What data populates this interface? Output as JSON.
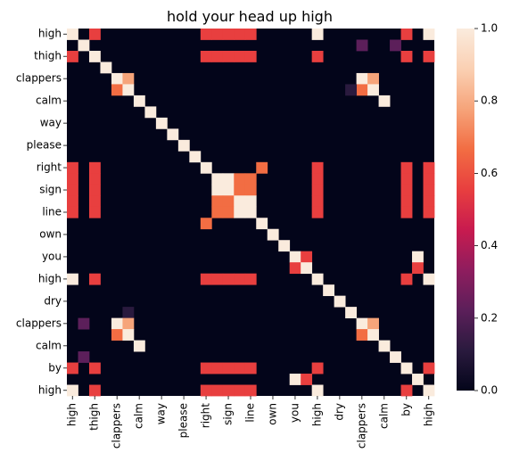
{
  "chart_data": {
    "type": "heatmap",
    "title": "hold your head up high",
    "row_tokens": [
      "high",
      "",
      "thigh",
      "",
      "clappers",
      "",
      "calm",
      "",
      "way",
      "",
      "please",
      "",
      "right",
      "",
      "sign",
      "",
      "line",
      "",
      "own",
      "",
      "you",
      "",
      "high",
      "",
      "dry",
      "",
      "clappers",
      "",
      "calm",
      "",
      "by",
      "",
      "high"
    ],
    "x_tick_labels": [
      "high",
      "thigh",
      "clappers",
      "calm",
      "way",
      "please",
      "right",
      "sign",
      "line",
      "own",
      "you",
      "high",
      "dry",
      "clappers",
      "calm",
      "by",
      "high"
    ],
    "y_tick_labels": [
      "high",
      "thigh",
      "clappers",
      "calm",
      "way",
      "please",
      "right",
      "sign",
      "line",
      "own",
      "you",
      "high",
      "dry",
      "clappers",
      "calm",
      "by",
      "high"
    ],
    "colorbar": {
      "min": 0.0,
      "max": 1.0,
      "ticks": [
        "0.0",
        "0.2",
        "0.4",
        "0.6",
        "0.8",
        "1.0"
      ]
    },
    "palette": [
      "#03051a",
      "#2a1a3e",
      "#5c1f5a",
      "#8f1d5e",
      "#c81b4f",
      "#e83f3f",
      "#f26d43",
      "#f6a47a",
      "#fad0b3",
      "#faebdd"
    ],
    "cells": [
      {
        "r": 0,
        "c": 0,
        "v": 1.0
      },
      {
        "r": 0,
        "c": 2,
        "v": 0.5
      },
      {
        "r": 0,
        "c": 12,
        "v": 0.5
      },
      {
        "r": 0,
        "c": 13,
        "v": 0.5
      },
      {
        "r": 0,
        "c": 14,
        "v": 0.5
      },
      {
        "r": 0,
        "c": 15,
        "v": 0.5
      },
      {
        "r": 0,
        "c": 16,
        "v": 0.5
      },
      {
        "r": 0,
        "c": 22,
        "v": 1.0
      },
      {
        "r": 0,
        "c": 30,
        "v": 0.5
      },
      {
        "r": 0,
        "c": 32,
        "v": 1.0
      },
      {
        "r": 1,
        "c": 1,
        "v": 1.0
      },
      {
        "r": 1,
        "c": 26,
        "v": 0.25
      },
      {
        "r": 1,
        "c": 29,
        "v": 0.25
      },
      {
        "r": 2,
        "c": 0,
        "v": 0.5
      },
      {
        "r": 2,
        "c": 2,
        "v": 1.0
      },
      {
        "r": 2,
        "c": 12,
        "v": 0.5
      },
      {
        "r": 2,
        "c": 13,
        "v": 0.5
      },
      {
        "r": 2,
        "c": 14,
        "v": 0.5
      },
      {
        "r": 2,
        "c": 15,
        "v": 0.5
      },
      {
        "r": 2,
        "c": 16,
        "v": 0.5
      },
      {
        "r": 2,
        "c": 22,
        "v": 0.5
      },
      {
        "r": 2,
        "c": 30,
        "v": 0.5
      },
      {
        "r": 2,
        "c": 32,
        "v": 0.5
      },
      {
        "r": 3,
        "c": 3,
        "v": 1.0
      },
      {
        "r": 4,
        "c": 4,
        "v": 1.0
      },
      {
        "r": 4,
        "c": 5,
        "v": 0.75
      },
      {
        "r": 4,
        "c": 26,
        "v": 1.0
      },
      {
        "r": 4,
        "c": 27,
        "v": 0.75
      },
      {
        "r": 5,
        "c": 4,
        "v": 0.7
      },
      {
        "r": 5,
        "c": 5,
        "v": 1.0
      },
      {
        "r": 5,
        "c": 26,
        "v": 0.7
      },
      {
        "r": 5,
        "c": 27,
        "v": 1.0
      },
      {
        "r": 5,
        "c": 25,
        "v": 0.15
      },
      {
        "r": 6,
        "c": 6,
        "v": 1.0
      },
      {
        "r": 6,
        "c": 28,
        "v": 1.0
      },
      {
        "r": 7,
        "c": 7,
        "v": 1.0
      },
      {
        "r": 8,
        "c": 8,
        "v": 1.0
      },
      {
        "r": 9,
        "c": 9,
        "v": 1.0
      },
      {
        "r": 10,
        "c": 10,
        "v": 1.0
      },
      {
        "r": 11,
        "c": 11,
        "v": 1.0
      },
      {
        "r": 12,
        "c": 0,
        "v": 0.5
      },
      {
        "r": 12,
        "c": 2,
        "v": 0.5
      },
      {
        "r": 12,
        "c": 12,
        "v": 1.0
      },
      {
        "r": 12,
        "c": 17,
        "v": 0.7
      },
      {
        "r": 12,
        "c": 22,
        "v": 0.5
      },
      {
        "r": 12,
        "c": 30,
        "v": 0.5
      },
      {
        "r": 12,
        "c": 32,
        "v": 0.5
      },
      {
        "r": 13,
        "c": 0,
        "v": 0.5
      },
      {
        "r": 13,
        "c": 2,
        "v": 0.5
      },
      {
        "r": 13,
        "c": 13,
        "v": 1.0
      },
      {
        "r": 13,
        "c": 14,
        "v": 1.0
      },
      {
        "r": 13,
        "c": 15,
        "v": 0.7
      },
      {
        "r": 13,
        "c": 16,
        "v": 0.7
      },
      {
        "r": 13,
        "c": 22,
        "v": 0.5
      },
      {
        "r": 13,
        "c": 30,
        "v": 0.5
      },
      {
        "r": 13,
        "c": 32,
        "v": 0.5
      },
      {
        "r": 14,
        "c": 0,
        "v": 0.5
      },
      {
        "r": 14,
        "c": 2,
        "v": 0.5
      },
      {
        "r": 14,
        "c": 13,
        "v": 1.0
      },
      {
        "r": 14,
        "c": 14,
        "v": 1.0
      },
      {
        "r": 14,
        "c": 15,
        "v": 0.7
      },
      {
        "r": 14,
        "c": 16,
        "v": 0.7
      },
      {
        "r": 14,
        "c": 22,
        "v": 0.5
      },
      {
        "r": 14,
        "c": 30,
        "v": 0.5
      },
      {
        "r": 14,
        "c": 32,
        "v": 0.5
      },
      {
        "r": 15,
        "c": 0,
        "v": 0.5
      },
      {
        "r": 15,
        "c": 2,
        "v": 0.5
      },
      {
        "r": 15,
        "c": 13,
        "v": 0.7
      },
      {
        "r": 15,
        "c": 14,
        "v": 0.7
      },
      {
        "r": 15,
        "c": 15,
        "v": 1.0
      },
      {
        "r": 15,
        "c": 16,
        "v": 1.0
      },
      {
        "r": 15,
        "c": 22,
        "v": 0.5
      },
      {
        "r": 15,
        "c": 30,
        "v": 0.5
      },
      {
        "r": 15,
        "c": 32,
        "v": 0.5
      },
      {
        "r": 16,
        "c": 0,
        "v": 0.5
      },
      {
        "r": 16,
        "c": 2,
        "v": 0.5
      },
      {
        "r": 16,
        "c": 13,
        "v": 0.7
      },
      {
        "r": 16,
        "c": 14,
        "v": 0.7
      },
      {
        "r": 16,
        "c": 15,
        "v": 1.0
      },
      {
        "r": 16,
        "c": 16,
        "v": 1.0
      },
      {
        "r": 16,
        "c": 22,
        "v": 0.5
      },
      {
        "r": 16,
        "c": 30,
        "v": 0.5
      },
      {
        "r": 16,
        "c": 32,
        "v": 0.5
      },
      {
        "r": 17,
        "c": 12,
        "v": 0.7
      },
      {
        "r": 17,
        "c": 17,
        "v": 1.0
      },
      {
        "r": 18,
        "c": 18,
        "v": 1.0
      },
      {
        "r": 19,
        "c": 19,
        "v": 1.0
      },
      {
        "r": 20,
        "c": 20,
        "v": 1.0
      },
      {
        "r": 20,
        "c": 21,
        "v": 0.5
      },
      {
        "r": 20,
        "c": 31,
        "v": 1.0
      },
      {
        "r": 21,
        "c": 20,
        "v": 0.5
      },
      {
        "r": 21,
        "c": 21,
        "v": 1.0
      },
      {
        "r": 21,
        "c": 31,
        "v": 0.5
      },
      {
        "r": 22,
        "c": 0,
        "v": 1.0
      },
      {
        "r": 22,
        "c": 2,
        "v": 0.5
      },
      {
        "r": 22,
        "c": 12,
        "v": 0.5
      },
      {
        "r": 22,
        "c": 13,
        "v": 0.5
      },
      {
        "r": 22,
        "c": 14,
        "v": 0.5
      },
      {
        "r": 22,
        "c": 15,
        "v": 0.5
      },
      {
        "r": 22,
        "c": 16,
        "v": 0.5
      },
      {
        "r": 22,
        "c": 22,
        "v": 1.0
      },
      {
        "r": 22,
        "c": 30,
        "v": 0.5
      },
      {
        "r": 22,
        "c": 32,
        "v": 1.0
      },
      {
        "r": 23,
        "c": 23,
        "v": 1.0
      },
      {
        "r": 24,
        "c": 24,
        "v": 1.0
      },
      {
        "r": 25,
        "c": 25,
        "v": 1.0
      },
      {
        "r": 25,
        "c": 5,
        "v": 0.15
      },
      {
        "r": 26,
        "c": 4,
        "v": 1.0
      },
      {
        "r": 26,
        "c": 5,
        "v": 0.75
      },
      {
        "r": 26,
        "c": 26,
        "v": 1.0
      },
      {
        "r": 26,
        "c": 27,
        "v": 0.75
      },
      {
        "r": 26,
        "c": 1,
        "v": 0.25
      },
      {
        "r": 27,
        "c": 4,
        "v": 0.7
      },
      {
        "r": 27,
        "c": 5,
        "v": 1.0
      },
      {
        "r": 27,
        "c": 26,
        "v": 0.7
      },
      {
        "r": 27,
        "c": 27,
        "v": 1.0
      },
      {
        "r": 28,
        "c": 6,
        "v": 1.0
      },
      {
        "r": 28,
        "c": 28,
        "v": 1.0
      },
      {
        "r": 29,
        "c": 1,
        "v": 0.25
      },
      {
        "r": 29,
        "c": 29,
        "v": 1.0
      },
      {
        "r": 30,
        "c": 0,
        "v": 0.5
      },
      {
        "r": 30,
        "c": 2,
        "v": 0.5
      },
      {
        "r": 30,
        "c": 12,
        "v": 0.5
      },
      {
        "r": 30,
        "c": 13,
        "v": 0.5
      },
      {
        "r": 30,
        "c": 14,
        "v": 0.5
      },
      {
        "r": 30,
        "c": 15,
        "v": 0.5
      },
      {
        "r": 30,
        "c": 16,
        "v": 0.5
      },
      {
        "r": 30,
        "c": 22,
        "v": 0.5
      },
      {
        "r": 30,
        "c": 30,
        "v": 1.0
      },
      {
        "r": 30,
        "c": 32,
        "v": 0.5
      },
      {
        "r": 31,
        "c": 20,
        "v": 1.0
      },
      {
        "r": 31,
        "c": 21,
        "v": 0.5
      },
      {
        "r": 31,
        "c": 31,
        "v": 1.0
      },
      {
        "r": 32,
        "c": 0,
        "v": 1.0
      },
      {
        "r": 32,
        "c": 2,
        "v": 0.5
      },
      {
        "r": 32,
        "c": 12,
        "v": 0.5
      },
      {
        "r": 32,
        "c": 13,
        "v": 0.5
      },
      {
        "r": 32,
        "c": 14,
        "v": 0.5
      },
      {
        "r": 32,
        "c": 15,
        "v": 0.5
      },
      {
        "r": 32,
        "c": 16,
        "v": 0.5
      },
      {
        "r": 32,
        "c": 22,
        "v": 1.0
      },
      {
        "r": 32,
        "c": 30,
        "v": 0.5
      },
      {
        "r": 32,
        "c": 32,
        "v": 1.0
      }
    ]
  }
}
